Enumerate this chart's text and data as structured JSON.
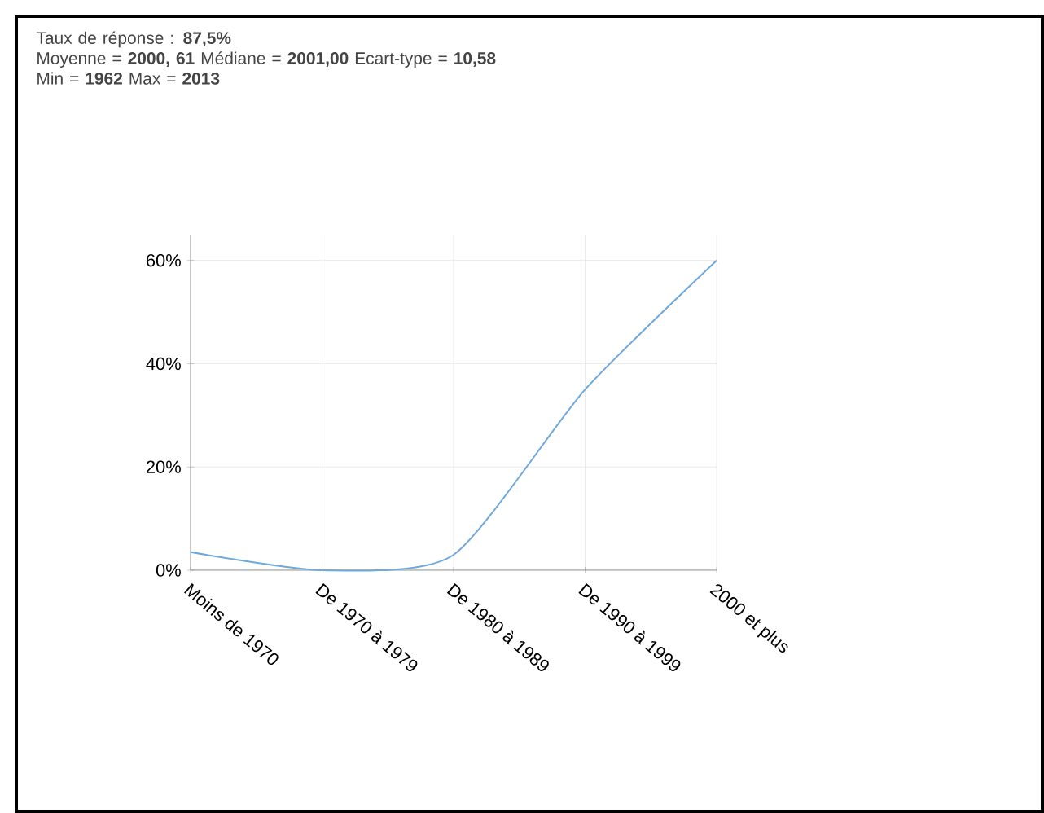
{
  "chart_data": {
    "type": "line",
    "title": "Taux de réponse : **87,5%**",
    "annotations": [
      "Moyenne = **2000, 61**   Médiane = **2001,00**   Ecart-type = **10,58**",
      "Min = **1962**   Max = **2013**"
    ],
    "categories": [
      "Moins de 1970",
      "De 1970 à 1979",
      "De 1980 à 1989",
      "De 1990 à 1999",
      "2000 et plus"
    ],
    "series": [
      {
        "color": "#6fa8dc",
        "values": [
          3.5,
          0,
          3,
          35,
          60
        ]
      }
    ],
    "ylim": [
      0,
      65
    ],
    "yticks": [
      {
        "value": 0,
        "label": "0%"
      },
      {
        "value": 20,
        "label": "20%"
      },
      {
        "value": 40,
        "label": "40%"
      },
      {
        "value": 60,
        "label": "60%"
      }
    ],
    "grid": true,
    "marker": "none"
  }
}
